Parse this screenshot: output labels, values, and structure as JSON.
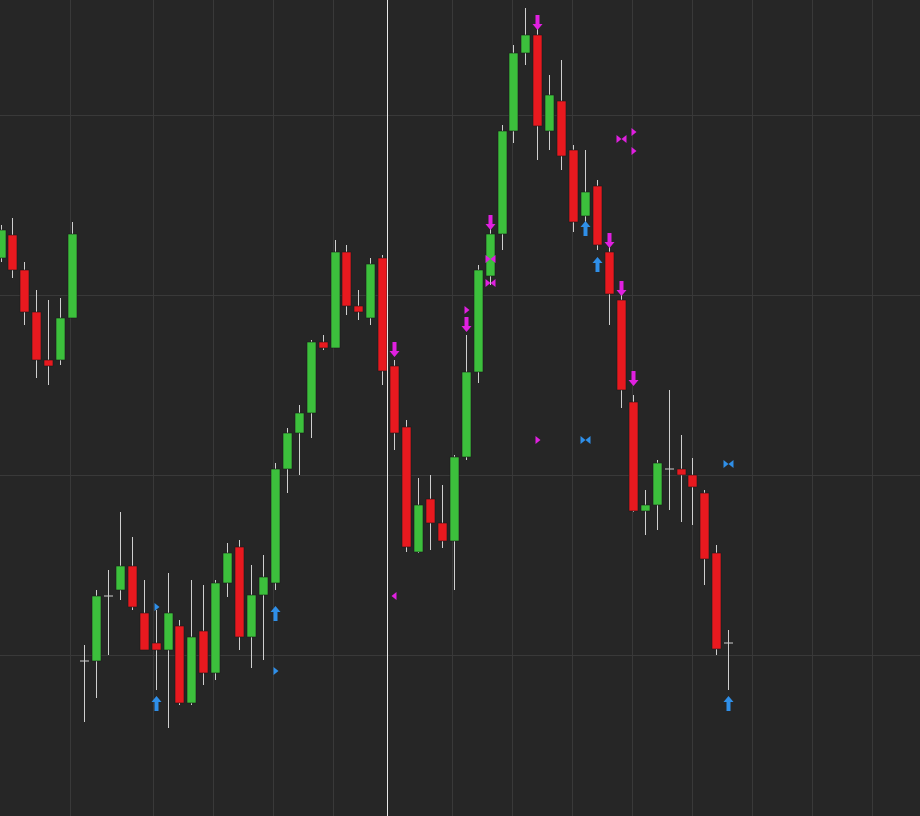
{
  "chart_data": {
    "type": "candlestick",
    "ylim": [
      0,
      816
    ],
    "grid": true,
    "up_color": "#3cc03c",
    "down_color": "#e8191f",
    "wick_color": "#cfcfcf",
    "open": [
      558,
      581,
      546,
      504,
      456,
      456,
      498,
      155,
      155,
      220,
      226,
      250,
      203,
      173,
      166,
      190,
      113,
      185,
      143,
      233,
      269,
      179,
      221,
      233,
      347,
      383,
      403,
      474,
      468,
      564,
      510,
      498,
      558,
      450,
      389,
      264,
      317,
      293,
      275,
      359,
      444,
      540,
      582,
      685,
      763,
      781,
      685,
      715,
      666,
      600,
      630,
      564,
      516,
      414,
      305,
      311,
      347,
      347,
      341,
      323,
      263,
      173
    ],
    "close": [
      586,
      546,
      504,
      456,
      450,
      498,
      582,
      155,
      220,
      220,
      250,
      209,
      166,
      166,
      203,
      113,
      179,
      143,
      233,
      263,
      179,
      221,
      239,
      347,
      383,
      403,
      474,
      468,
      564,
      510,
      504,
      552,
      445,
      383,
      269,
      311,
      293,
      275,
      359,
      444,
      546,
      582,
      685,
      763,
      781,
      690,
      721,
      660,
      594,
      624,
      571,
      522,
      426,
      305,
      311,
      353,
      347,
      341,
      329,
      257,
      167,
      173
    ],
    "high": [
      591,
      598,
      554,
      526,
      516,
      518,
      594,
      171,
      226,
      246,
      304,
      279,
      236,
      206,
      243,
      196,
      236,
      231,
      236,
      273,
      276,
      251,
      261,
      353,
      388,
      411,
      476,
      481,
      576,
      571,
      526,
      558,
      561,
      456,
      396,
      338,
      341,
      331,
      361,
      481,
      551,
      594,
      691,
      771,
      808,
      791,
      741,
      756,
      671,
      666,
      636,
      571,
      521,
      421,
      326,
      356,
      426,
      381,
      358,
      326,
      271,
      186
    ],
    "low": [
      554,
      538,
      491,
      438,
      431,
      451,
      498,
      94,
      118,
      161,
      216,
      206,
      166,
      126,
      88,
      111,
      111,
      131,
      136,
      219,
      166,
      148,
      156,
      226,
      323,
      341,
      378,
      466,
      468,
      501,
      496,
      491,
      431,
      366,
      264,
      263,
      266,
      268,
      226,
      356,
      433,
      531,
      566,
      673,
      751,
      656,
      666,
      646,
      584,
      594,
      566,
      491,
      408,
      304,
      281,
      286,
      306,
      294,
      291,
      231,
      161,
      126
    ],
    "markers": [
      {
        "kind": "arrow-up",
        "color": "#2f8fe8",
        "index": [
          13,
          23,
          49,
          50,
          61
        ],
        "values": [
          112,
          202,
          587,
          551,
          112
        ]
      },
      {
        "kind": "arrow-down",
        "color": "#e020e0",
        "index": [
          33,
          39,
          41,
          45,
          51,
          52,
          53
        ],
        "values": [
          467,
          492,
          594,
          794,
          576,
          528,
          438
        ]
      },
      {
        "kind": "triangle-right",
        "color": "#e020e0",
        "index": [
          39,
          45,
          53,
          53
        ],
        "values": [
          506,
          376,
          684,
          665
        ]
      },
      {
        "kind": "bowtie",
        "color": "#e020e0",
        "index": [
          41,
          41,
          52
        ],
        "values": [
          557,
          533,
          677
        ]
      },
      {
        "kind": "bowtie",
        "color": "#2f8fe8",
        "index": [
          49,
          61
        ],
        "values": [
          376,
          352
        ]
      },
      {
        "kind": "triangle-right",
        "color": "#2f8fe8",
        "index": [
          13,
          23
        ],
        "values": [
          209,
          145
        ]
      },
      {
        "kind": "triangle-left",
        "color": "#e020e0",
        "index": [
          33
        ],
        "values": [
          220
        ]
      }
    ]
  }
}
